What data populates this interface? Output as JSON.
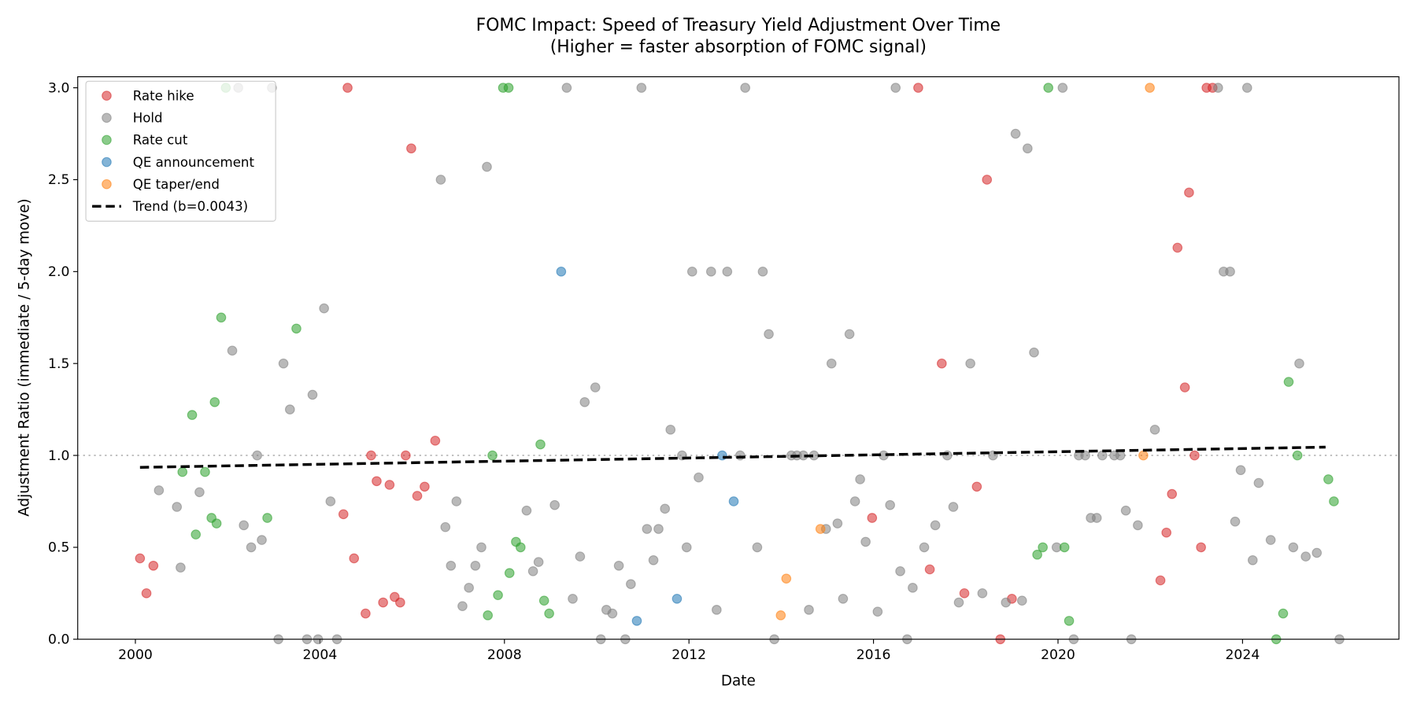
{
  "chart_data": {
    "type": "scatter",
    "title": "FOMC Impact: Speed of Treasury Yield Adjustment Over Time",
    "subtitle": "(Higher = faster absorption of FOMC signal)",
    "xlabel": "Date",
    "ylabel": "Adjustment Ratio (immediate / 5-day move)",
    "xlim": [
      1998.75,
      2027.39
    ],
    "ylim": [
      0,
      3.06
    ],
    "xticks": [
      2000,
      2004,
      2008,
      2012,
      2016,
      2020,
      2024
    ],
    "yticks": [
      {
        "value": 0,
        "label": "0.0"
      },
      0.5,
      {
        "value": 1,
        "label": "1.0"
      },
      1.5,
      {
        "value": 2,
        "label": "2.0"
      },
      2.5,
      {
        "value": 3,
        "label": "3.0"
      }
    ],
    "hline": 1.0,
    "legend": "upper left",
    "alpha": 0.55,
    "series": [
      {
        "name": "Rate hike",
        "color": "#d62728",
        "x": [
          2000.1,
          2000.24,
          2000.39,
          2004.6,
          2004.51,
          2004.74,
          2004.99,
          2005.11,
          2005.23,
          2005.37,
          2005.51,
          2005.62,
          2005.74,
          2005.86,
          2005.98,
          2006.11,
          2006.27,
          2006.5,
          2015.97,
          2016.97,
          2017.22,
          2017.48,
          2017.97,
          2018.24,
          2018.46,
          2018.75,
          2019.0,
          2022.22,
          2022.35,
          2022.47,
          2022.59,
          2022.75,
          2022.84,
          2022.96,
          2023.1,
          2023.22,
          2023.35
        ],
        "values": [
          0.44,
          0.25,
          0.4,
          3.0,
          0.68,
          0.44,
          0.14,
          1.0,
          0.86,
          0.2,
          0.84,
          0.23,
          0.2,
          1.0,
          2.67,
          0.78,
          0.83,
          1.08,
          0.66,
          3.0,
          0.38,
          1.5,
          0.25,
          0.83,
          2.5,
          0.0,
          0.22,
          0.32,
          0.58,
          0.79,
          2.13,
          1.37,
          2.43,
          1.0,
          0.5,
          3.0,
          3.0
        ]
      },
      {
        "name": "Hold",
        "color": "#7f7f7f",
        "x": [
          2000.51,
          2000.9,
          2000.98,
          2001.39,
          2002.1,
          2002.23,
          2002.35,
          2002.51,
          2002.64,
          2002.74,
          2002.96,
          2003.1,
          2003.21,
          2003.35,
          2003.72,
          2003.84,
          2003.96,
          2004.09,
          2004.23,
          2004.37,
          2006.62,
          2006.72,
          2006.84,
          2006.96,
          2007.09,
          2007.23,
          2007.37,
          2007.5,
          2007.62,
          2008.48,
          2008.62,
          2008.74,
          2009.09,
          2009.35,
          2009.48,
          2009.64,
          2009.74,
          2009.97,
          2010.09,
          2010.21,
          2010.34,
          2010.48,
          2010.62,
          2010.74,
          2010.97,
          2011.09,
          2011.23,
          2011.34,
          2011.48,
          2011.6,
          2011.85,
          2011.95,
          2012.07,
          2012.21,
          2012.48,
          2012.6,
          2012.83,
          2013.11,
          2013.22,
          2013.48,
          2013.6,
          2013.73,
          2013.85,
          2014.22,
          2014.34,
          2014.48,
          2014.6,
          2014.71,
          2014.97,
          2015.09,
          2015.22,
          2015.34,
          2015.48,
          2015.6,
          2015.71,
          2015.83,
          2016.09,
          2016.22,
          2016.36,
          2016.48,
          2016.58,
          2016.73,
          2016.85,
          2017.1,
          2017.34,
          2017.6,
          2017.73,
          2017.85,
          2018.1,
          2018.36,
          2018.59,
          2018.87,
          2019.08,
          2019.22,
          2019.34,
          2019.48,
          2019.97,
          2020.1,
          2020.34,
          2020.45,
          2020.59,
          2020.71,
          2020.84,
          2020.96,
          2021.22,
          2021.35,
          2021.47,
          2021.59,
          2021.73,
          2022.1,
          2023.47,
          2023.59,
          2023.73,
          2023.84,
          2023.96,
          2024.1,
          2024.22,
          2024.35,
          2024.61,
          2025.1,
          2025.23,
          2025.37,
          2025.61,
          2026.1
        ],
        "values": [
          0.81,
          0.72,
          0.39,
          0.8,
          1.57,
          3.0,
          0.62,
          0.5,
          1.0,
          0.54,
          3.0,
          0.0,
          1.5,
          1.25,
          0.0,
          1.33,
          0.0,
          1.8,
          0.75,
          0.0,
          2.5,
          0.61,
          0.4,
          0.75,
          0.18,
          0.28,
          0.4,
          0.5,
          2.57,
          0.7,
          0.37,
          0.42,
          0.73,
          3.0,
          0.22,
          0.45,
          1.29,
          1.37,
          0.0,
          0.16,
          0.14,
          0.4,
          0.0,
          0.3,
          3.0,
          0.6,
          0.43,
          0.6,
          0.71,
          1.14,
          1.0,
          0.5,
          2.0,
          0.88,
          2.0,
          0.16,
          2.0,
          1.0,
          3.0,
          0.5,
          2.0,
          1.66,
          0.0,
          1.0,
          1.0,
          1.0,
          0.16,
          1.0,
          0.6,
          1.5,
          0.63,
          0.22,
          1.66,
          0.75,
          0.87,
          0.53,
          0.15,
          1.0,
          0.73,
          3.0,
          0.37,
          0.0,
          0.28,
          0.5,
          0.62,
          1.0,
          0.72,
          0.2,
          1.5,
          0.25,
          1.0,
          0.2,
          2.75,
          0.21,
          2.67,
          1.56,
          0.5,
          3.0,
          0.0,
          1.0,
          1.0,
          0.66,
          0.66,
          1.0,
          1.0,
          1.0,
          0.7,
          0.0,
          0.62,
          1.14,
          3.0,
          2.0,
          2.0,
          0.64,
          0.92,
          3.0,
          0.43,
          0.85,
          0.54,
          0.5,
          1.5,
          0.45,
          0.47,
          0.0
        ]
      },
      {
        "name": "Rate cut",
        "color": "#2ca02c",
        "x": [
          2001.02,
          2001.23,
          2001.31,
          2001.51,
          2001.65,
          2001.72,
          2001.76,
          2001.86,
          2001.96,
          2002.86,
          2003.49,
          2007.64,
          2007.74,
          2007.86,
          2007.97,
          2008.09,
          2008.11,
          2008.25,
          2008.35,
          2008.78,
          2008.86,
          2008.97,
          2019.55,
          2019.67,
          2019.79,
          2020.14,
          2020.24,
          2024.73,
          2024.88,
          2025.0,
          2025.19,
          2025.86,
          2025.98
        ],
        "values": [
          0.91,
          1.22,
          0.57,
          0.91,
          0.66,
          1.29,
          0.63,
          1.75,
          3.0,
          0.66,
          1.69,
          0.13,
          1.0,
          0.24,
          3.0,
          3.0,
          0.36,
          0.53,
          0.5,
          1.06,
          0.21,
          0.14,
          0.46,
          0.5,
          3.0,
          0.5,
          0.1,
          0.0,
          0.14,
          1.4,
          1.0,
          0.87,
          0.75
        ]
      },
      {
        "name": "QE announcement",
        "color": "#1f77b4",
        "x": [
          2009.23,
          2010.87,
          2011.74,
          2012.72,
          2012.97
        ],
        "values": [
          2.0,
          0.1,
          0.22,
          1.0,
          0.75
        ]
      },
      {
        "name": "QE taper/end",
        "color": "#ff7f0e",
        "x": [
          2013.99,
          2014.11,
          2014.85,
          2021.85,
          2021.99
        ],
        "values": [
          0.13,
          0.33,
          0.6,
          1.0,
          3.0
        ]
      }
    ],
    "trend": {
      "name": "Trend (b=0.0043)",
      "color": "#000000",
      "x": [
        2000.1,
        2025.8
      ],
      "values": [
        0.935,
        1.045
      ]
    }
  }
}
